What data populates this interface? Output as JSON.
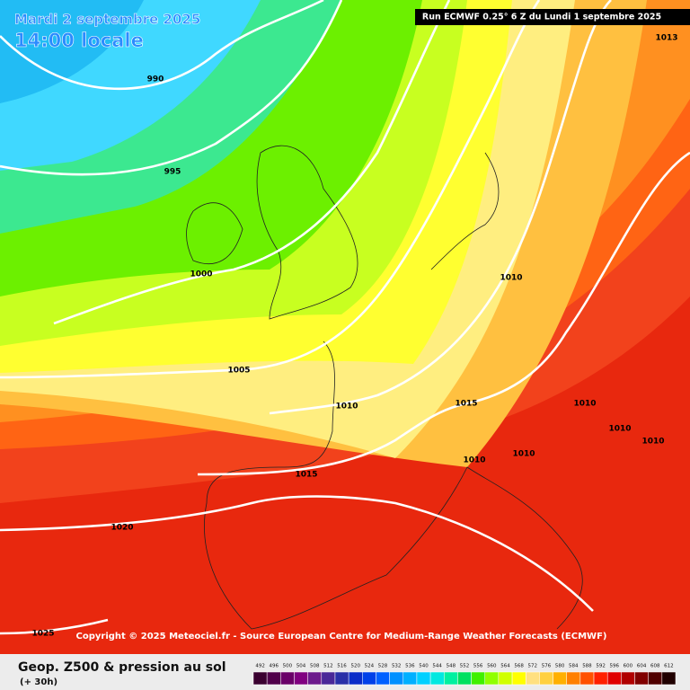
{
  "header": {
    "date": "Mardi 2 septembre 2025",
    "time": "14:00 locale",
    "run": "Run ECMWF 0.25° 6 Z du Lundi 1 septembre 2025"
  },
  "isobar_labels": [
    990,
    995,
    1000,
    1005,
    1010,
    1015,
    1020,
    1025,
    1010,
    1015,
    1010,
    1010,
    1010,
    1010,
    1010,
    1013
  ],
  "copyright": "Copyright © 2025 Meteociel.fr - Source European Centre for Medium-Range Weather Forecasts (ECMWF)",
  "footer": {
    "title": "Geop. Z500 & pression au sol",
    "subtitle": "(+ 30h)"
  },
  "legend": {
    "ticks": [
      492,
      496,
      500,
      504,
      508,
      512,
      516,
      520,
      524,
      528,
      532,
      536,
      540,
      544,
      548,
      552,
      556,
      560,
      564,
      568,
      572,
      576,
      580,
      584,
      588,
      592,
      596,
      600,
      604,
      608,
      612
    ],
    "colors": [
      "#3a0030",
      "#50004a",
      "#6a0068",
      "#800080",
      "#6c1a8c",
      "#4a2898",
      "#2a30a8",
      "#0a2cc8",
      "#0040e8",
      "#0060ff",
      "#0090ff",
      "#00b0ff",
      "#00d0ff",
      "#00e8e0",
      "#00f0a0",
      "#00e060",
      "#40f000",
      "#90ff00",
      "#d0ff00",
      "#ffff00",
      "#ffe080",
      "#ffd040",
      "#ffb000",
      "#ff8000",
      "#ff5000",
      "#ff2000",
      "#e00000",
      "#b00000",
      "#800000",
      "#500000",
      "#200000"
    ]
  }
}
